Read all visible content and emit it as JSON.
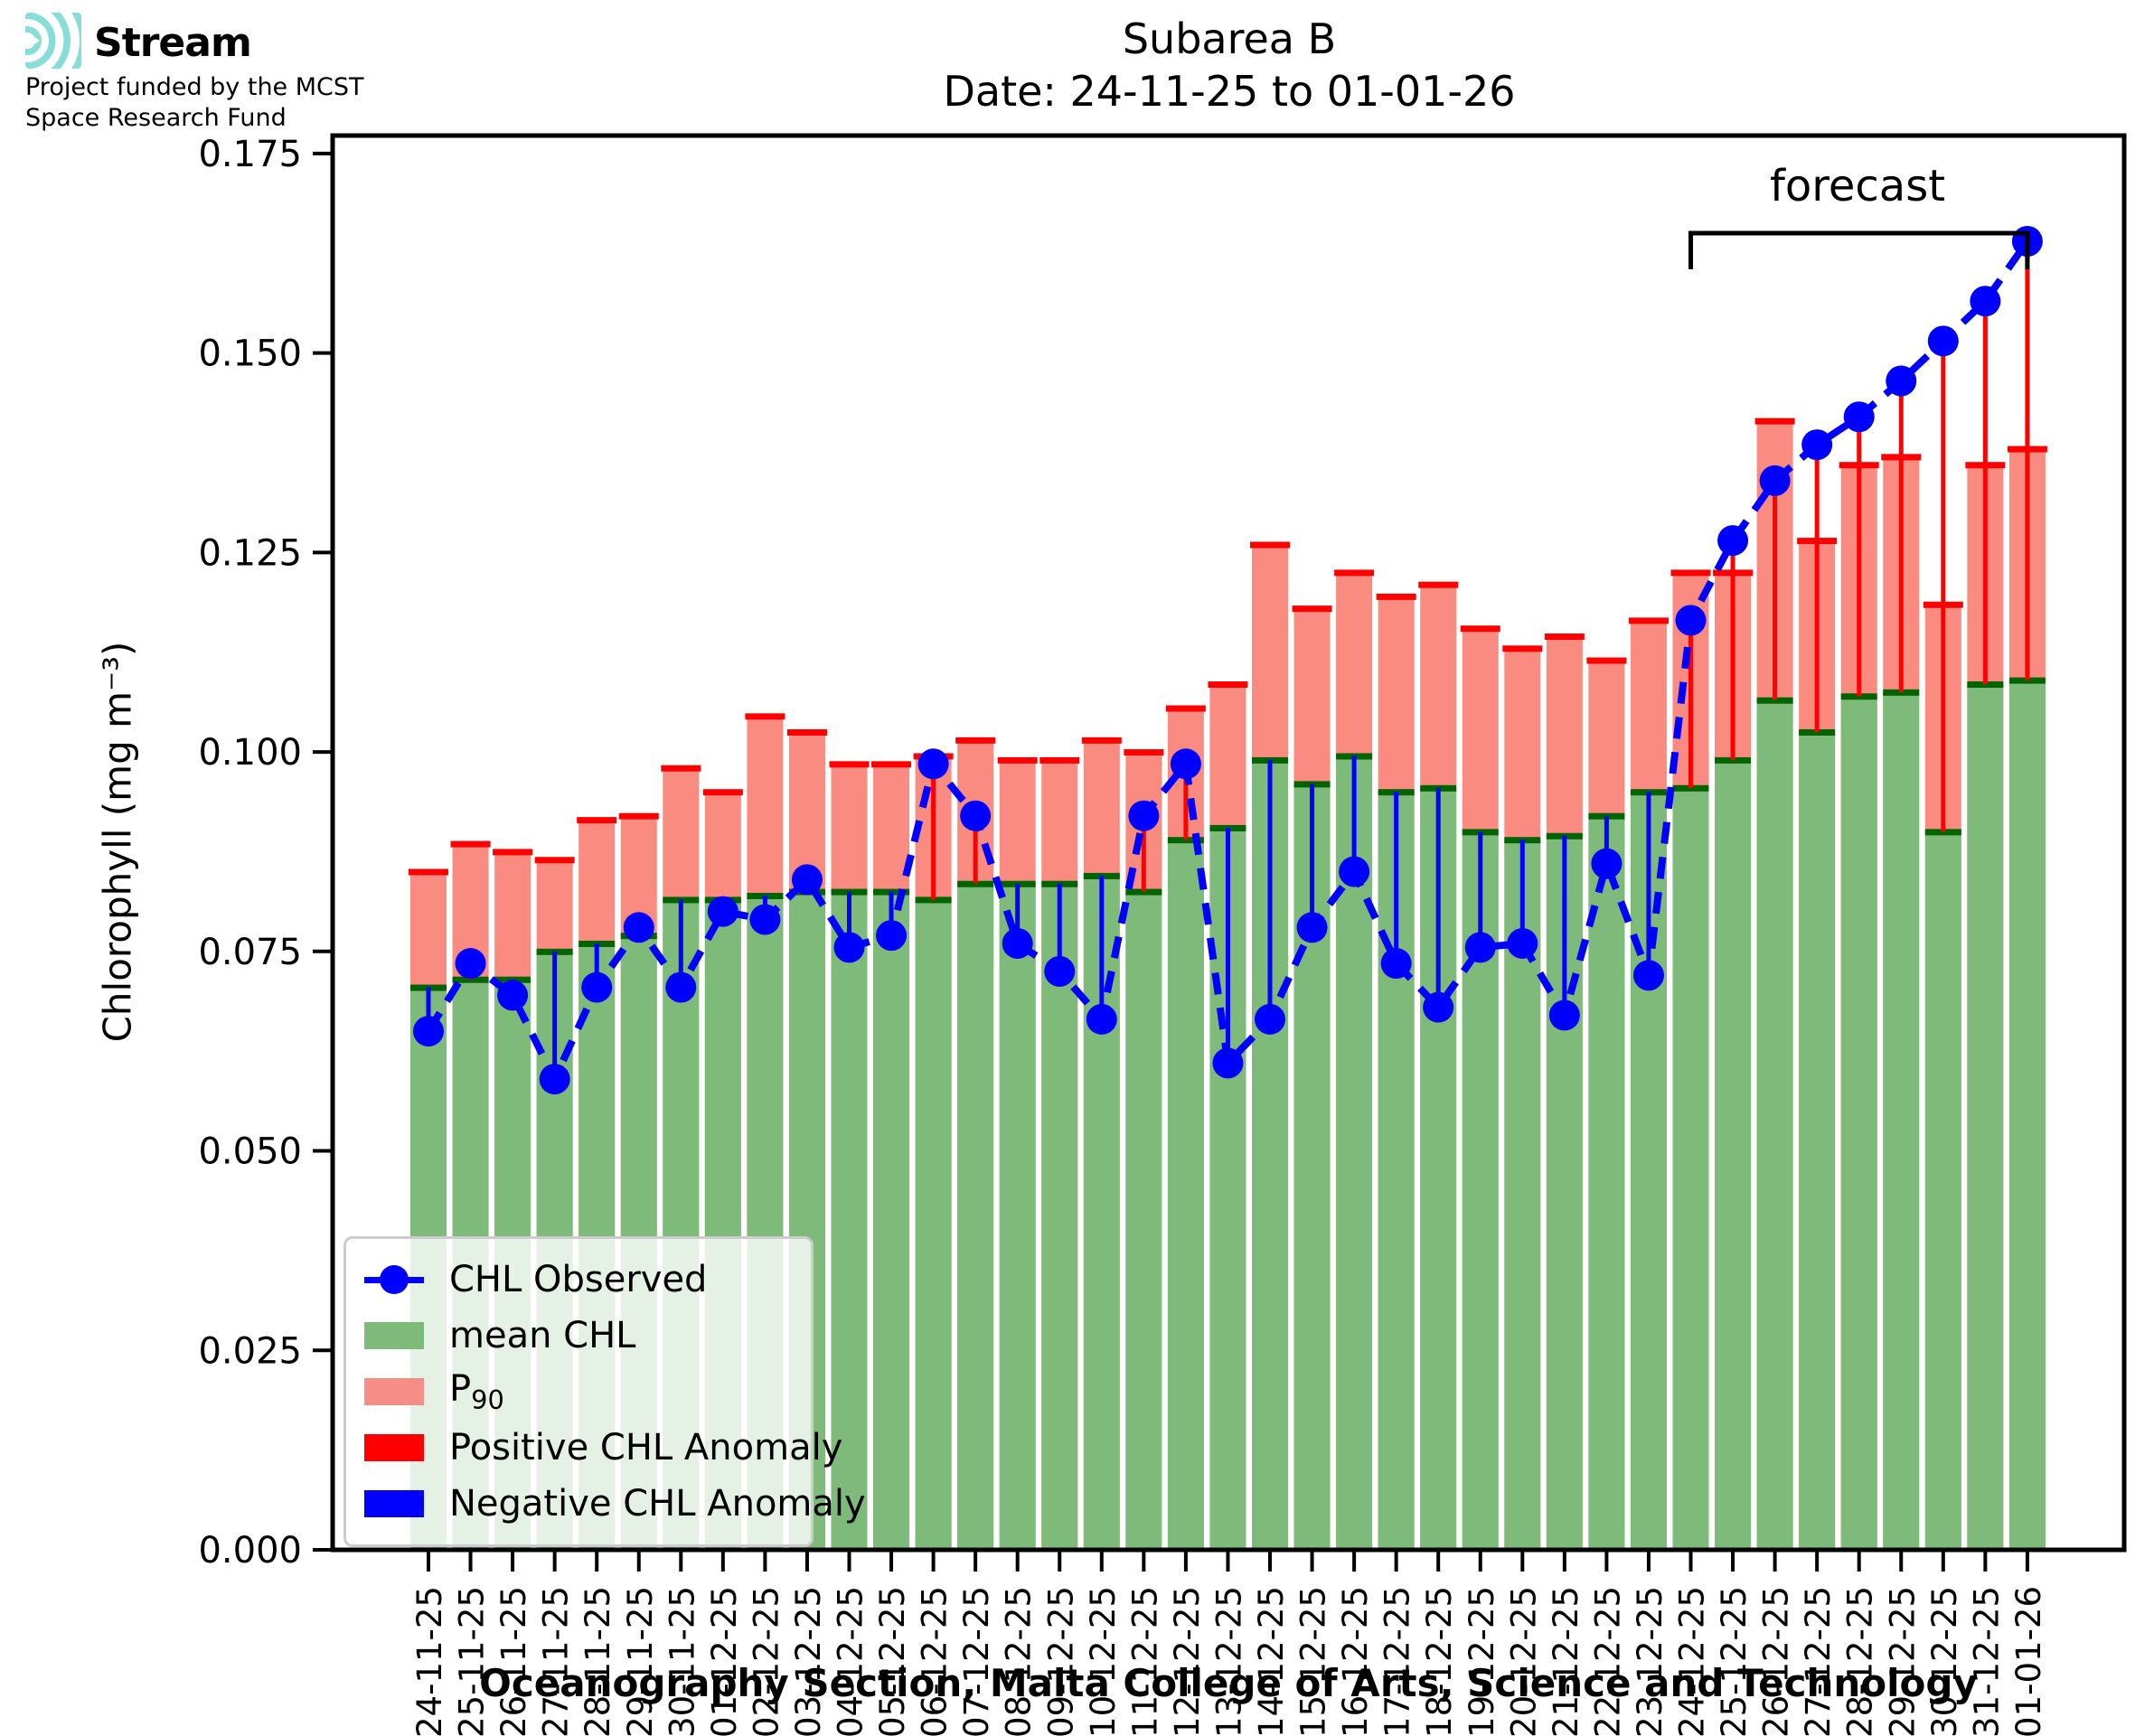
{
  "logo": {
    "brand": "Stream",
    "funding_line1": "Project funded by the MCST",
    "funding_line2": "Space Research Fund",
    "icon_color": "#87ddd8"
  },
  "title": {
    "line1": "Subarea B",
    "line2": "Date: 24-11-25 to 01-01-26"
  },
  "axes": {
    "y_label": "Chlorophyll (mg m⁻³)",
    "y_tick_labels": [
      "0.000",
      "0.025",
      "0.050",
      "0.075",
      "0.100",
      "0.125",
      "0.150",
      "0.175"
    ],
    "y_tick_values": [
      0.0,
      0.025,
      0.05,
      0.075,
      0.1,
      0.125,
      0.15,
      0.175
    ],
    "x_caption": "Oceanography Section, Malta College of Arts, Science and Technology"
  },
  "annotations": {
    "forecast_label": "forecast",
    "forecast_start_date": "24-12-25",
    "forecast_end_date": "01-01-26"
  },
  "legend": {
    "observed_label": "CHL Observed",
    "mean_label": "mean CHL",
    "p90_label": "P",
    "p90_sublabel": "90",
    "positive_label": "Positive CHL Anomaly",
    "negative_label": "Negative CHL Anomaly"
  },
  "colors": {
    "mean_fill": "#7eba7a",
    "mean_edge": "#006400",
    "p90_fill": "#f98b81",
    "p90_edge": "#ff0000",
    "observed": "#0000ff",
    "positive_anomaly": "#ff0000",
    "negative_anomaly": "#0000ff",
    "axis": "#000000"
  },
  "chart_data": {
    "type": "bar",
    "title": "Subarea B  Date: 24-11-25 to 01-01-26",
    "xlabel": "Oceanography Section, Malta College of Arts, Science and Technology",
    "ylabel": "Chlorophyll (mg m⁻³)",
    "ylim": [
      0,
      0.17725
    ],
    "grid": false,
    "legend_position": "lower left",
    "categories": [
      "24-11-25",
      "25-11-25",
      "26-11-25",
      "27-11-25",
      "28-11-25",
      "29-11-25",
      "30-11-25",
      "01-12-25",
      "02-12-25",
      "03-12-25",
      "04-12-25",
      "05-12-25",
      "06-12-25",
      "07-12-25",
      "08-12-25",
      "09-12-25",
      "10-12-25",
      "11-12-25",
      "12-12-25",
      "13-12-25",
      "14-12-25",
      "15-12-25",
      "16-12-25",
      "17-12-25",
      "18-12-25",
      "19-12-25",
      "20-12-25",
      "21-12-25",
      "22-12-25",
      "23-12-25",
      "24-12-25",
      "25-12-25",
      "26-12-25",
      "27-12-25",
      "28-12-25",
      "29-12-25",
      "30-12-25",
      "31-12-25",
      "01-01-26"
    ],
    "series": [
      {
        "name": "mean CHL",
        "type": "bar",
        "values": [
          0.0705,
          0.0715,
          0.0715,
          0.075,
          0.076,
          0.077,
          0.0815,
          0.0815,
          0.082,
          0.0825,
          0.0825,
          0.0825,
          0.0815,
          0.0835,
          0.0835,
          0.0835,
          0.0845,
          0.0825,
          0.089,
          0.0905,
          0.099,
          0.096,
          0.0995,
          0.095,
          0.0955,
          0.09,
          0.089,
          0.0895,
          0.092,
          0.095,
          0.0955,
          0.099,
          0.1065,
          0.1025,
          0.107,
          0.1075,
          0.09,
          0.1085,
          0.109
        ]
      },
      {
        "name": "P90",
        "type": "bar",
        "values": [
          0.085,
          0.0885,
          0.0875,
          0.0865,
          0.0915,
          0.092,
          0.098,
          0.095,
          0.1045,
          0.1025,
          0.0985,
          0.0985,
          0.0995,
          0.1015,
          0.099,
          0.099,
          0.1015,
          0.1,
          0.1055,
          0.1085,
          0.126,
          0.118,
          0.1225,
          0.1195,
          0.121,
          0.1155,
          0.113,
          0.1145,
          0.1115,
          0.1165,
          0.1225,
          0.1225,
          0.1415,
          0.1265,
          0.136,
          0.137,
          0.1185,
          0.136,
          0.138
        ]
      },
      {
        "name": "CHL Observed",
        "type": "line",
        "values": [
          0.065,
          0.0735,
          0.0695,
          0.059,
          0.0705,
          0.078,
          0.0705,
          0.08,
          0.079,
          0.084,
          0.0755,
          0.077,
          0.0985,
          0.092,
          0.076,
          0.0725,
          0.0665,
          0.092,
          0.0985,
          0.061,
          0.0665,
          0.078,
          0.085,
          0.0735,
          0.068,
          0.0755,
          0.076,
          0.067,
          0.086,
          0.072,
          0.1165,
          0.1265,
          0.134,
          0.1385,
          0.142,
          0.1465,
          0.1515,
          0.1565,
          0.164
        ]
      }
    ],
    "anomaly_note": "Vertical line per bar from mean CHL to CHL Observed; red when observed > mean, blue when observed < mean",
    "forecast_span_indices": [
      30,
      38
    ]
  }
}
